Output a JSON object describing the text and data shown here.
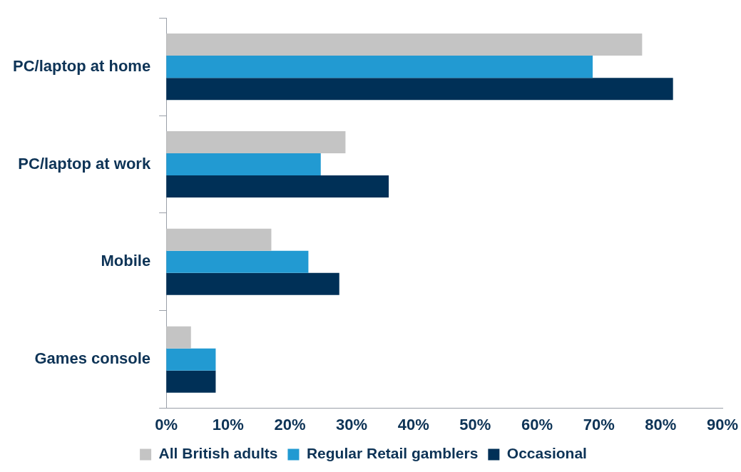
{
  "chart_data": {
    "type": "bar",
    "orientation": "horizontal",
    "categories": [
      "PC/laptop at home",
      "PC/laptop at work",
      "Mobile",
      "Games console"
    ],
    "series": [
      {
        "name": "All British adults",
        "color": "#c4c4c4",
        "values": [
          77,
          29,
          17,
          4
        ]
      },
      {
        "name": "Regular Retail gamblers",
        "color": "#229ad2",
        "values": [
          69,
          25,
          23,
          8
        ]
      },
      {
        "name": "Occasional",
        "color": "#003057",
        "values": [
          82,
          36,
          28,
          8
        ]
      }
    ],
    "xlim": [
      0,
      90
    ],
    "xticks": [
      {
        "value": 0,
        "label": "0%"
      },
      {
        "value": 10,
        "label": "10%"
      },
      {
        "value": 20,
        "label": "20%"
      },
      {
        "value": 30,
        "label": "30%"
      },
      {
        "value": 40,
        "label": "40%"
      },
      {
        "value": 50,
        "label": "50%"
      },
      {
        "value": 60,
        "label": "60%"
      },
      {
        "value": 70,
        "label": "70%"
      },
      {
        "value": 80,
        "label": "80%"
      },
      {
        "value": 90,
        "label": "90%"
      }
    ],
    "grid": false,
    "legend": "bottom"
  }
}
